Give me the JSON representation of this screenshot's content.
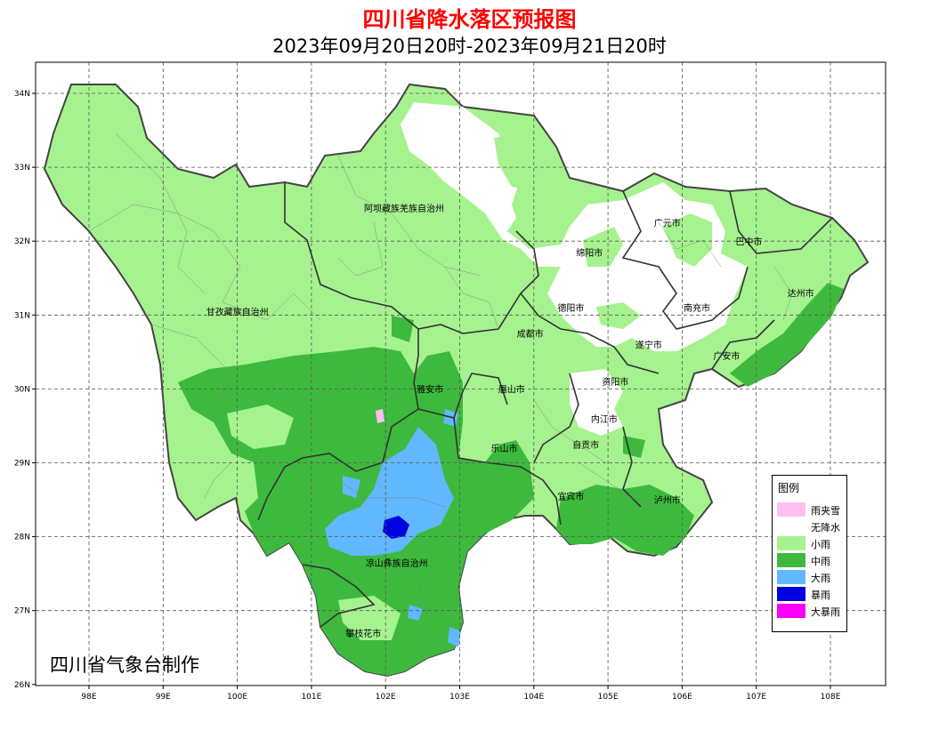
{
  "header": {
    "title": "四川省降水落区预报图",
    "period": "2023年09月20日20时-2023年09月21日20时"
  },
  "footer": {
    "credit": "四川省气象台制作"
  },
  "map": {
    "lon_ticks": [
      "98E",
      "99E",
      "100E",
      "101E",
      "102E",
      "103E",
      "104E",
      "105E",
      "106E",
      "107E",
      "108E"
    ],
    "lat_ticks": [
      "34N",
      "33N",
      "32N",
      "31N",
      "30N",
      "29N",
      "28N",
      "27N",
      "26N"
    ],
    "grid": "dashed",
    "cities": [
      {
        "name": "阿坝藏族羌族自治州",
        "lon": 102.25,
        "lat": 32.4
      },
      {
        "name": "甘孜藏族自治州",
        "lon": 100.0,
        "lat": 31.0
      },
      {
        "name": "广元市",
        "lon": 105.8,
        "lat": 32.2
      },
      {
        "name": "巴中市",
        "lon": 106.9,
        "lat": 31.95
      },
      {
        "name": "绵阳市",
        "lon": 104.75,
        "lat": 31.8
      },
      {
        "name": "达州市",
        "lon": 107.6,
        "lat": 31.25
      },
      {
        "name": "德阳市",
        "lon": 104.5,
        "lat": 31.05
      },
      {
        "name": "南充市",
        "lon": 106.2,
        "lat": 31.05
      },
      {
        "name": "成都市",
        "lon": 103.95,
        "lat": 30.7
      },
      {
        "name": "遂宁市",
        "lon": 105.55,
        "lat": 30.55
      },
      {
        "name": "广安市",
        "lon": 106.6,
        "lat": 30.4
      },
      {
        "name": "资阳市",
        "lon": 105.1,
        "lat": 30.05
      },
      {
        "name": "雅安市",
        "lon": 102.6,
        "lat": 29.95
      },
      {
        "name": "眉山市",
        "lon": 103.7,
        "lat": 29.95
      },
      {
        "name": "内江市",
        "lon": 104.95,
        "lat": 29.55
      },
      {
        "name": "自贡市",
        "lon": 104.7,
        "lat": 29.2
      },
      {
        "name": "乐山市",
        "lon": 103.6,
        "lat": 29.15
      },
      {
        "name": "宜宾市",
        "lon": 104.5,
        "lat": 28.5
      },
      {
        "name": "泸州市",
        "lon": 105.8,
        "lat": 28.45
      },
      {
        "name": "凉山彝族自治州",
        "lon": 102.15,
        "lat": 27.6
      },
      {
        "name": "攀枝花市",
        "lon": 101.7,
        "lat": 26.65
      }
    ]
  },
  "legend": {
    "title": "图例",
    "items": [
      {
        "label": "雨夹雪",
        "color": "#ffc0f0"
      },
      {
        "label": "无降水",
        "color": "#ffffff"
      },
      {
        "label": "小雨",
        "color": "#a6f28f"
      },
      {
        "label": "中雨",
        "color": "#3dba3d"
      },
      {
        "label": "大雨",
        "color": "#61b8ff"
      },
      {
        "label": "暴雨",
        "color": "#0000e1"
      },
      {
        "label": "大暴雨",
        "color": "#fa00fa"
      }
    ]
  }
}
